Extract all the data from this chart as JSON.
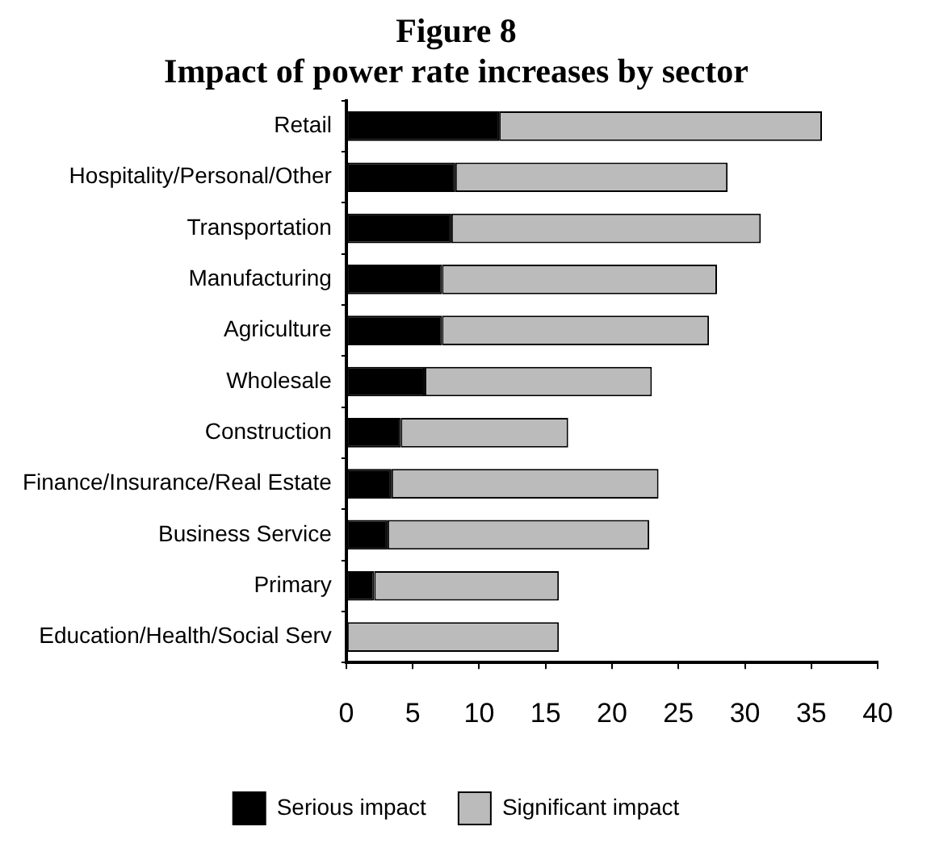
{
  "chart_data": {
    "type": "bar",
    "orientation": "horizontal",
    "stacked": true,
    "title": "Figure 8",
    "subtitle": "Impact of power rate increases by sector",
    "categories": [
      "Retail",
      "Hospitality/Personal/Other",
      "Transportation",
      "Manufacturing",
      "Agriculture",
      "Wholesale",
      "Construction",
      "Finance/Insurance/Real Estate",
      "Business Service",
      "Primary",
      "Education/Health/Social Serv"
    ],
    "series": [
      {
        "name": "Serious impact",
        "color": "#000000",
        "values": [
          11.5,
          8.2,
          7.9,
          7.2,
          7.2,
          5.9,
          4.1,
          3.4,
          3.1,
          2.1,
          0
        ]
      },
      {
        "name": "Significant impact",
        "color": "#bbbbbb",
        "values": [
          24.3,
          20.5,
          23.3,
          20.7,
          20.1,
          17.1,
          12.6,
          20.1,
          19.7,
          13.9,
          16.0
        ]
      }
    ],
    "xlim": [
      0,
      40
    ],
    "xticks": [
      0,
      5,
      10,
      15,
      20,
      25,
      30,
      35,
      40
    ],
    "legend": "bottom"
  }
}
